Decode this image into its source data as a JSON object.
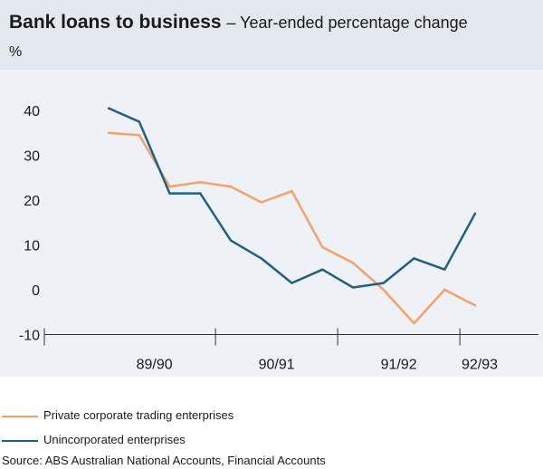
{
  "header": {
    "title": "Bank loans to business",
    "subtitle": "– Year-ended percentage change",
    "unit": "%"
  },
  "chart_data": {
    "type": "line",
    "title": "Bank loans to business",
    "subtitle": "Year-ended percentage change",
    "ylabel": "%",
    "ylim": [
      -10,
      45
    ],
    "yticks": [
      -10,
      0,
      10,
      20,
      30,
      40
    ],
    "categories": [
      "89/90",
      "90/91",
      "91/92",
      "92/93"
    ],
    "grid": false,
    "legend_position": "bottom-left",
    "x": [
      0,
      1,
      2,
      3,
      4,
      5,
      6,
      7,
      8,
      9,
      10,
      11,
      12
    ],
    "series": [
      {
        "name": "Private corporate trading enterprises",
        "color": "#f5a16b",
        "values": [
          35,
          34.5,
          23,
          24,
          23,
          19.5,
          22,
          9.5,
          6,
          0,
          -7.5,
          0,
          -3.5
        ]
      },
      {
        "name": "Unincorporated enterprises",
        "color": "#1f5f8b",
        "values": [
          40.5,
          37.5,
          21.5,
          21.5,
          11,
          7,
          1.5,
          4.5,
          0.5,
          1.5,
          7,
          4.5,
          17
        ]
      }
    ]
  },
  "source": "Source:  ABS Australian National Accounts, Financial Accounts"
}
